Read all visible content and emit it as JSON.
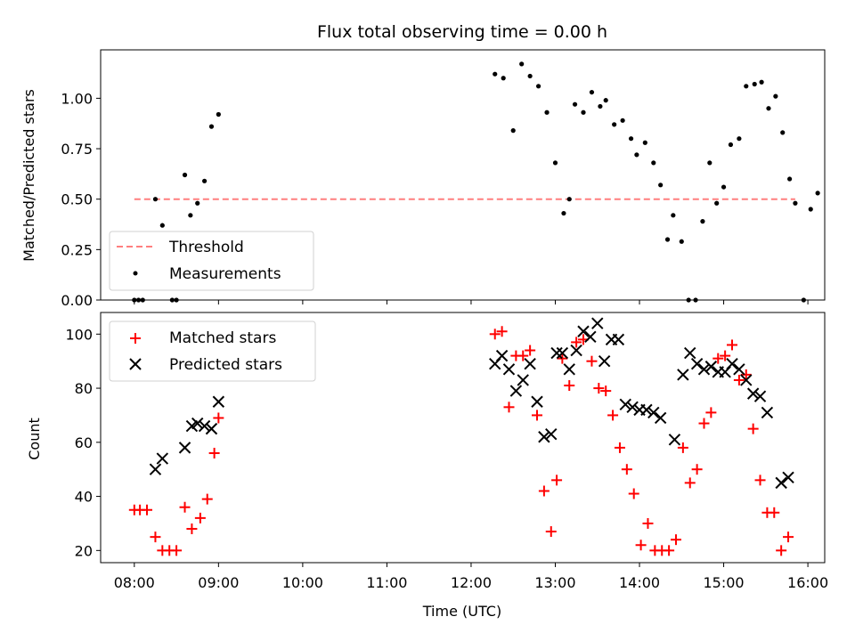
{
  "chart_data": [
    {
      "type": "scatter",
      "title": "Flux total observing time = 0.00 h",
      "xlabel": "",
      "ylabel": "Matched/Predicted stars",
      "xlim": [
        "07:36",
        "16:12"
      ],
      "ylim": [
        0,
        1.24
      ],
      "y_ticks": [
        0.0,
        0.25,
        0.5,
        0.75,
        1.0
      ],
      "y_tick_labels": [
        "0.00",
        "0.25",
        "0.50",
        "0.75",
        "1.00"
      ],
      "grid": false,
      "legend": "lower-left",
      "threshold": {
        "name": "Threshold",
        "value": 0.5,
        "x_range": [
          "08:00",
          "15:51"
        ],
        "color": "#ff7f7f",
        "style": "dashed"
      },
      "series": [
        {
          "name": "Measurements",
          "color": "#000000",
          "marker": "dot",
          "points": [
            [
              "08:00",
              0.0
            ],
            [
              "08:03",
              0.0
            ],
            [
              "08:06",
              0.0
            ],
            [
              "08:15",
              0.5
            ],
            [
              "08:20",
              0.37
            ],
            [
              "08:27",
              0.0
            ],
            [
              "08:30",
              0.0
            ],
            [
              "08:36",
              0.62
            ],
            [
              "08:40",
              0.42
            ],
            [
              "08:45",
              0.48
            ],
            [
              "08:50",
              0.59
            ],
            [
              "08:55",
              0.86
            ],
            [
              "09:00",
              0.92
            ],
            [
              "12:17",
              1.12
            ],
            [
              "12:23",
              1.1
            ],
            [
              "12:30",
              0.84
            ],
            [
              "12:36",
              1.17
            ],
            [
              "12:42",
              1.11
            ],
            [
              "12:48",
              1.06
            ],
            [
              "12:54",
              0.93
            ],
            [
              "13:00",
              0.68
            ],
            [
              "13:06",
              0.43
            ],
            [
              "13:10",
              0.5
            ],
            [
              "13:14",
              0.97
            ],
            [
              "13:20",
              0.93
            ],
            [
              "13:26",
              1.03
            ],
            [
              "13:32",
              0.96
            ],
            [
              "13:36",
              0.99
            ],
            [
              "13:42",
              0.87
            ],
            [
              "13:48",
              0.89
            ],
            [
              "13:54",
              0.8
            ],
            [
              "13:58",
              0.72
            ],
            [
              "14:04",
              0.78
            ],
            [
              "14:10",
              0.68
            ],
            [
              "14:15",
              0.57
            ],
            [
              "14:20",
              0.3
            ],
            [
              "14:24",
              0.42
            ],
            [
              "14:30",
              0.29
            ],
            [
              "14:35",
              0.0
            ],
            [
              "14:40",
              0.0
            ],
            [
              "14:45",
              0.39
            ],
            [
              "14:50",
              0.68
            ],
            [
              "14:55",
              0.48
            ],
            [
              "15:00",
              0.56
            ],
            [
              "15:05",
              0.77
            ],
            [
              "15:11",
              0.8
            ],
            [
              "15:16",
              1.06
            ],
            [
              "15:22",
              1.07
            ],
            [
              "15:27",
              1.08
            ],
            [
              "15:32",
              0.95
            ],
            [
              "15:37",
              1.01
            ],
            [
              "15:42",
              0.83
            ],
            [
              "15:47",
              0.6
            ],
            [
              "15:51",
              0.48
            ],
            [
              "15:57",
              0.0
            ],
            [
              "16:02",
              0.45
            ],
            [
              "16:07",
              0.53
            ]
          ]
        }
      ]
    },
    {
      "type": "scatter",
      "title": "",
      "xlabel": "Time (UTC)",
      "ylabel": "Count",
      "xlim": [
        "07:36",
        "16:12"
      ],
      "ylim": [
        15.5,
        108
      ],
      "x_ticks": [
        "08:00",
        "09:00",
        "10:00",
        "11:00",
        "12:00",
        "13:00",
        "14:00",
        "15:00",
        "16:00"
      ],
      "y_ticks": [
        20,
        40,
        60,
        80,
        100
      ],
      "y_tick_labels": [
        "20",
        "40",
        "60",
        "80",
        "100"
      ],
      "grid": false,
      "legend": "top-left",
      "series": [
        {
          "name": "Matched stars",
          "color": "#ff0000",
          "marker": "plus",
          "points": [
            [
              "08:00",
              35
            ],
            [
              "08:04",
              35
            ],
            [
              "08:09",
              35
            ],
            [
              "08:15",
              25
            ],
            [
              "08:20",
              20
            ],
            [
              "08:25",
              20
            ],
            [
              "08:30",
              20
            ],
            [
              "08:36",
              36
            ],
            [
              "08:41",
              28
            ],
            [
              "08:47",
              32
            ],
            [
              "08:52",
              39
            ],
            [
              "08:57",
              56
            ],
            [
              "09:00",
              69
            ],
            [
              "12:17",
              100
            ],
            [
              "12:22",
              101
            ],
            [
              "12:27",
              73
            ],
            [
              "12:32",
              92
            ],
            [
              "12:37",
              92
            ],
            [
              "12:42",
              94
            ],
            [
              "12:47",
              70
            ],
            [
              "12:52",
              42
            ],
            [
              "12:57",
              27
            ],
            [
              "13:01",
              46
            ],
            [
              "13:05",
              91
            ],
            [
              "13:10",
              81
            ],
            [
              "13:15",
              97
            ],
            [
              "13:20",
              98
            ],
            [
              "13:26",
              90
            ],
            [
              "13:31",
              80
            ],
            [
              "13:36",
              79
            ],
            [
              "13:41",
              70
            ],
            [
              "13:46",
              58
            ],
            [
              "13:51",
              50
            ],
            [
              "13:56",
              41
            ],
            [
              "14:01",
              22
            ],
            [
              "14:06",
              30
            ],
            [
              "14:11",
              20
            ],
            [
              "14:16",
              20
            ],
            [
              "14:21",
              20
            ],
            [
              "14:26",
              24
            ],
            [
              "14:31",
              58
            ],
            [
              "14:36",
              45
            ],
            [
              "14:41",
              50
            ],
            [
              "14:46",
              67
            ],
            [
              "14:51",
              71
            ],
            [
              "14:56",
              91
            ],
            [
              "15:01",
              92
            ],
            [
              "15:06",
              96
            ],
            [
              "15:11",
              83
            ],
            [
              "15:16",
              85
            ],
            [
              "15:21",
              65
            ],
            [
              "15:26",
              46
            ],
            [
              "15:31",
              34
            ],
            [
              "15:36",
              34
            ],
            [
              "15:41",
              20
            ],
            [
              "15:46",
              25
            ]
          ]
        },
        {
          "name": "Predicted stars",
          "color": "#000000",
          "marker": "x",
          "points": [
            [
              "08:15",
              50
            ],
            [
              "08:20",
              54
            ],
            [
              "08:36",
              58
            ],
            [
              "08:41",
              66
            ],
            [
              "08:45",
              67
            ],
            [
              "08:50",
              66
            ],
            [
              "08:55",
              65
            ],
            [
              "09:00",
              75
            ],
            [
              "12:17",
              89
            ],
            [
              "12:22",
              92
            ],
            [
              "12:27",
              87
            ],
            [
              "12:32",
              79
            ],
            [
              "12:37",
              83
            ],
            [
              "12:42",
              89
            ],
            [
              "12:47",
              75
            ],
            [
              "12:52",
              62
            ],
            [
              "12:57",
              63
            ],
            [
              "13:01",
              93
            ],
            [
              "13:05",
              93
            ],
            [
              "13:10",
              87
            ],
            [
              "13:15",
              94
            ],
            [
              "13:20",
              101
            ],
            [
              "13:25",
              99
            ],
            [
              "13:30",
              104
            ],
            [
              "13:35",
              90
            ],
            [
              "13:40",
              98
            ],
            [
              "13:45",
              98
            ],
            [
              "13:50",
              74
            ],
            [
              "13:55",
              73
            ],
            [
              "14:00",
              72
            ],
            [
              "14:05",
              72
            ],
            [
              "14:10",
              71
            ],
            [
              "14:15",
              69
            ],
            [
              "14:25",
              61
            ],
            [
              "14:31",
              85
            ],
            [
              "14:36",
              93
            ],
            [
              "14:41",
              89
            ],
            [
              "14:46",
              87
            ],
            [
              "14:51",
              88
            ],
            [
              "14:56",
              86
            ],
            [
              "15:01",
              86
            ],
            [
              "15:06",
              89
            ],
            [
              "15:11",
              87
            ],
            [
              "15:16",
              83
            ],
            [
              "15:21",
              78
            ],
            [
              "15:26",
              77
            ],
            [
              "15:31",
              71
            ],
            [
              "15:41",
              45
            ],
            [
              "15:46",
              47
            ]
          ]
        }
      ]
    }
  ]
}
